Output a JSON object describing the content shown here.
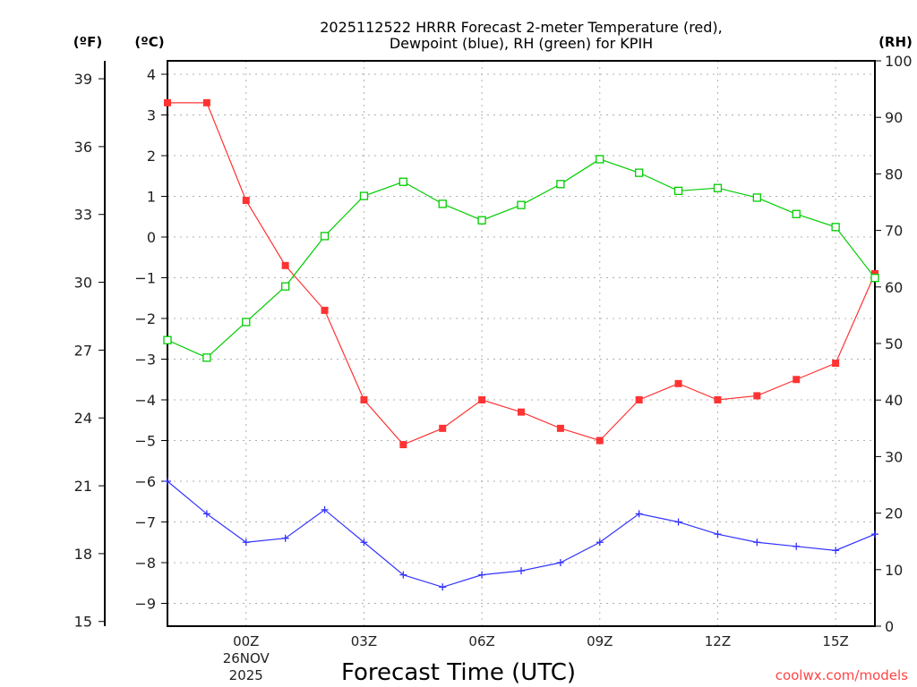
{
  "chart_data": {
    "type": "line",
    "title": [
      "2025112522 HRRR Forecast 2-meter Temperature (red),",
      "Dewpoint (blue), RH (green) for KPIH"
    ],
    "xlabel": "Forecast Time (UTC)",
    "date_label": [
      "26NOV",
      "2025"
    ],
    "left_f_label": "(ºF)",
    "left_c_label": "(ºC)",
    "right_label": "(RH)",
    "watermark": "coolwx.com/models",
    "x": [
      "22Z",
      "23Z",
      "00Z",
      "01Z",
      "02Z",
      "03Z",
      "04Z",
      "05Z",
      "06Z",
      "07Z",
      "08Z",
      "09Z",
      "10Z",
      "11Z",
      "12Z",
      "13Z",
      "14Z",
      "15Z",
      "16Z"
    ],
    "x_tick_labels": [
      "00Z",
      "03Z",
      "06Z",
      "09Z",
      "12Z",
      "15Z"
    ],
    "c_ticks": [
      4,
      3,
      2,
      1,
      0,
      -1,
      -2,
      -3,
      -4,
      -5,
      -6,
      -7,
      -8,
      -9
    ],
    "c_tick_labels": [
      "4",
      "3",
      "2",
      "1",
      "0",
      "−1",
      "−2",
      "−3",
      "−4",
      "−5",
      "−6",
      "−7",
      "−8",
      "−9"
    ],
    "f_ticks": [
      39,
      36,
      33,
      30,
      27,
      24,
      21,
      18,
      15
    ],
    "rh_ticks": [
      100,
      90,
      80,
      70,
      60,
      50,
      40,
      30,
      20,
      10,
      0
    ],
    "c_ylim": [
      -9.4,
      4.4
    ],
    "rh_ylim": [
      0,
      100
    ],
    "grid": true,
    "series": [
      {
        "name": "Temperature (°C)",
        "color": "#ff3333",
        "marker": "filled-square",
        "values": [
          3.3,
          3.3,
          0.9,
          -0.7,
          -1.8,
          -4.0,
          -5.1,
          -4.7,
          -4.0,
          -4.3,
          -4.7,
          -5.0,
          -4.0,
          -3.6,
          -4.0,
          -3.9,
          -3.5,
          -3.1,
          -0.9
        ]
      },
      {
        "name": "Dewpoint (°C)",
        "color": "#3333ff",
        "marker": "plus",
        "values": [
          -6.0,
          -6.8,
          -7.5,
          -7.4,
          -6.7,
          -7.5,
          -8.3,
          -8.6,
          -8.3,
          -8.2,
          -8.0,
          -7.5,
          -6.8,
          -7.0,
          -7.3,
          -7.5,
          -7.6,
          -7.7,
          -7.3
        ]
      },
      {
        "name": "RH (%)",
        "color": "#00cc00",
        "marker": "hollow-square",
        "axis": "right",
        "values": [
          50.6,
          47.5,
          53.8,
          60.1,
          69.0,
          76.1,
          78.6,
          74.7,
          71.8,
          74.5,
          78.2,
          82.6,
          80.2,
          77.0,
          77.5,
          75.8,
          72.9,
          70.6,
          61.6
        ]
      }
    ]
  }
}
